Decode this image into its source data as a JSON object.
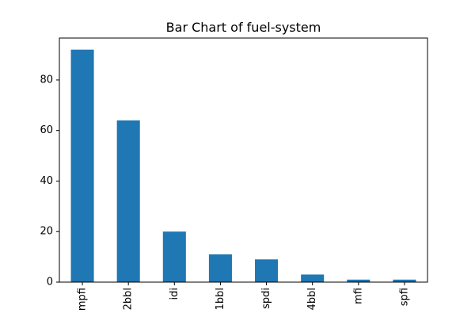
{
  "chart_data": {
    "type": "bar",
    "title": "Bar Chart of fuel-system",
    "xlabel": "",
    "ylabel": "",
    "categories": [
      "mpfi",
      "2bbl",
      "idi",
      "1bbl",
      "spdi",
      "4bbl",
      "mfi",
      "spfi"
    ],
    "values": [
      92,
      64,
      20,
      11,
      9,
      3,
      1,
      1
    ],
    "ylim": [
      0,
      96.6
    ],
    "yticks": [
      0,
      20,
      40,
      60,
      80
    ],
    "grid": false,
    "legend": "none",
    "bar_color": "#1f77b4",
    "x_tick_rotation": "vertical"
  }
}
